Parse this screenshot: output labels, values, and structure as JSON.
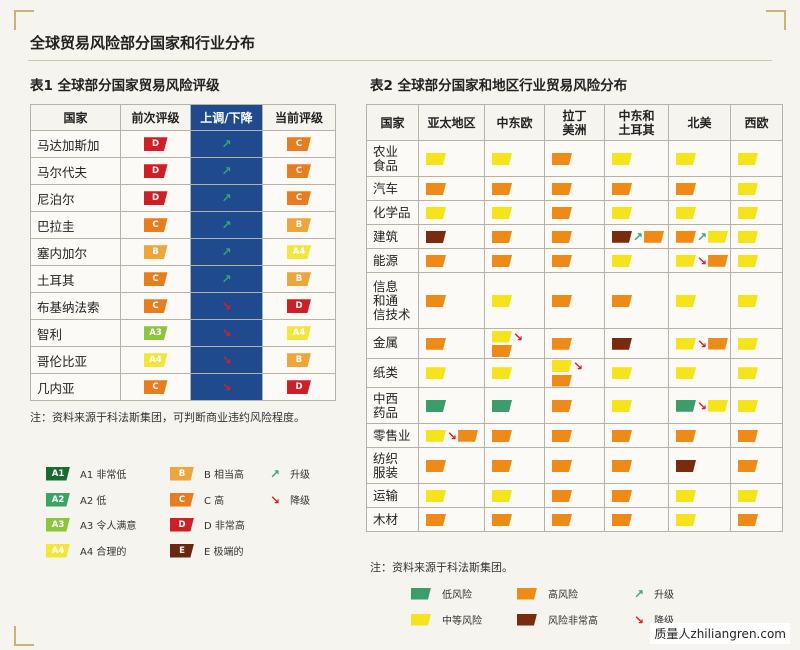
{
  "page_title": "全球贸易风险部分国家和行业分布",
  "table1": {
    "title": "表1  全球部分国家贸易风险评级",
    "headers": [
      "国家",
      "前次评级",
      "上调/下降",
      "当前评级"
    ],
    "rows": [
      {
        "country": "马达加斯加",
        "prev": "D",
        "trend": "up",
        "curr": "C"
      },
      {
        "country": "马尔代夫",
        "prev": "D",
        "trend": "up",
        "curr": "C"
      },
      {
        "country": "尼泊尔",
        "prev": "D",
        "trend": "up",
        "curr": "C"
      },
      {
        "country": "巴拉圭",
        "prev": "C",
        "trend": "up",
        "curr": "B"
      },
      {
        "country": "塞内加尔",
        "prev": "B",
        "trend": "up",
        "curr": "A4"
      },
      {
        "country": "土耳其",
        "prev": "C",
        "trend": "up",
        "curr": "B"
      },
      {
        "country": "布基纳法索",
        "prev": "C",
        "trend": "down",
        "curr": "D"
      },
      {
        "country": "智利",
        "prev": "A3",
        "trend": "down",
        "curr": "A4"
      },
      {
        "country": "哥伦比亚",
        "prev": "A4",
        "trend": "down",
        "curr": "B"
      },
      {
        "country": "几内亚",
        "prev": "C",
        "trend": "down",
        "curr": "D"
      }
    ],
    "note": "注：资料来源于科法斯集团，可判断商业违约风险程度。"
  },
  "legend1": {
    "items": [
      {
        "code": "A1",
        "label": "A1 非常低"
      },
      {
        "code": "A2",
        "label": "A2 低"
      },
      {
        "code": "A3",
        "label": "A3 令人满意"
      },
      {
        "code": "A4",
        "label": "A4 合理的"
      },
      {
        "code": "B",
        "label": "B 相当高"
      },
      {
        "code": "C",
        "label": "C 高"
      },
      {
        "code": "D",
        "label": "D 非常高"
      },
      {
        "code": "E",
        "label": "E 极端的"
      }
    ],
    "up_label": "升级",
    "down_label": "降级"
  },
  "table2": {
    "title": "表2  全球部分国家和地区行业贸易风险分布",
    "headers": [
      "国家",
      "亚太地区",
      "中东欧",
      "拉丁\n美洲",
      "中东和\n土耳其",
      "北美",
      "西欧"
    ],
    "rows": [
      {
        "sector": "农业\n食品",
        "cells": [
          [
            "M"
          ],
          [
            "M"
          ],
          [
            "H"
          ],
          [
            "M"
          ],
          [
            "M"
          ],
          [
            "M"
          ]
        ]
      },
      {
        "sector": "汽车",
        "cells": [
          [
            "H"
          ],
          [
            "H"
          ],
          [
            "H"
          ],
          [
            "H"
          ],
          [
            "H"
          ],
          [
            "M"
          ]
        ]
      },
      {
        "sector": "化学品",
        "cells": [
          [
            "M"
          ],
          [
            "M"
          ],
          [
            "H"
          ],
          [
            "M"
          ],
          [
            "M"
          ],
          [
            "M"
          ]
        ]
      },
      {
        "sector": "建筑",
        "cells": [
          [
            "V"
          ],
          [
            "H"
          ],
          [
            "H"
          ],
          [
            "V",
            "up",
            "H"
          ],
          [
            "H",
            "up",
            "M"
          ],
          [
            "M"
          ]
        ]
      },
      {
        "sector": "能源",
        "cells": [
          [
            "H"
          ],
          [
            "H"
          ],
          [
            "H"
          ],
          [
            "M"
          ],
          [
            "M",
            "down",
            "H"
          ],
          [
            "M"
          ]
        ]
      },
      {
        "sector": "信息\n和通\n信技术",
        "cells": [
          [
            "H"
          ],
          [
            "M"
          ],
          [
            "H"
          ],
          [
            "H"
          ],
          [
            "M"
          ],
          [
            "M"
          ]
        ]
      },
      {
        "sector": "金属",
        "cells": [
          [
            "H"
          ],
          [
            "M",
            "down",
            "H"
          ],
          [
            "H"
          ],
          [
            "V"
          ],
          [
            "M",
            "down",
            "H"
          ],
          [
            "M"
          ]
        ]
      },
      {
        "sector": "纸类",
        "cells": [
          [
            "M"
          ],
          [
            "M"
          ],
          [
            "M",
            "down",
            "H"
          ],
          [
            "M"
          ],
          [
            "M"
          ],
          [
            "M"
          ]
        ]
      },
      {
        "sector": "中西\n药品",
        "cells": [
          [
            "L"
          ],
          [
            "L"
          ],
          [
            "H"
          ],
          [
            "M"
          ],
          [
            "L",
            "down",
            "M"
          ],
          [
            "M"
          ]
        ]
      },
      {
        "sector": "零售业",
        "cells": [
          [
            "M",
            "down",
            "H"
          ],
          [
            "H"
          ],
          [
            "H"
          ],
          [
            "H"
          ],
          [
            "H"
          ],
          [
            "H"
          ]
        ]
      },
      {
        "sector": "纺织\n服装",
        "cells": [
          [
            "H"
          ],
          [
            "H"
          ],
          [
            "H"
          ],
          [
            "H"
          ],
          [
            "V"
          ],
          [
            "H"
          ]
        ]
      },
      {
        "sector": "运输",
        "cells": [
          [
            "M"
          ],
          [
            "M"
          ],
          [
            "H"
          ],
          [
            "H"
          ],
          [
            "M"
          ],
          [
            "M"
          ]
        ]
      },
      {
        "sector": "木材",
        "cells": [
          [
            "H"
          ],
          [
            "H"
          ],
          [
            "H"
          ],
          [
            "H"
          ],
          [
            "M"
          ],
          [
            "H"
          ]
        ]
      }
    ],
    "note": "注：资料来源于科法斯集团。"
  },
  "legend2": {
    "low": "低风险",
    "high": "高风险",
    "mid": "中等风险",
    "very_high": "风险非常高",
    "up": "升级",
    "down": "降级"
  },
  "colors": {
    "low": "#3a9d6a",
    "mid": "#f5e31c",
    "high": "#ee8a18",
    "very_high": "#7a2a0f",
    "up_arrow": "#3aa47d",
    "down_arrow": "#d81f26",
    "trend_bg": "#1f4b8e"
  },
  "footer": "质量人zhiliangren.com"
}
